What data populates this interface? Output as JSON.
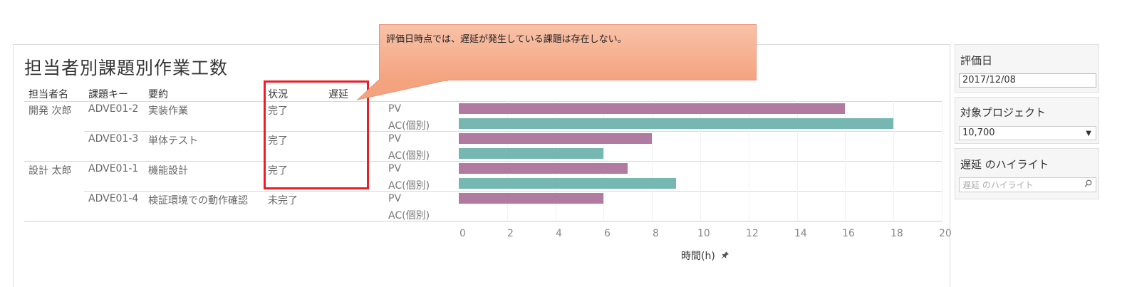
{
  "sheet": {
    "title": "担当者別課題別作業工数",
    "columns": {
      "assignee": "担当者名",
      "issue_key": "課題キー",
      "summary": "要約",
      "status": "状況",
      "delay": "遅延"
    },
    "menu_glyph": "="
  },
  "rows": [
    {
      "assignee": "開発  次郎",
      "issue_key": "ADVE01-2",
      "summary": "実装作業",
      "status": "完了",
      "pv_label": "PV",
      "ac_label": "AC(個別)",
      "pv": 16,
      "ac": 18
    },
    {
      "assignee": "",
      "issue_key": "ADVE01-3",
      "summary": "単体テスト",
      "status": "完了",
      "pv_label": "PV",
      "ac_label": "AC(個別)",
      "pv": 8,
      "ac": 6
    },
    {
      "assignee": "設計  太郎",
      "issue_key": "ADVE01-1",
      "summary": "機能設計",
      "status": "完了",
      "pv_label": "PV",
      "ac_label": "AC(個別)",
      "pv": 7,
      "ac": 9
    },
    {
      "assignee": "",
      "issue_key": "ADVE01-4",
      "summary": "検証環境での動作確認",
      "status": "未完了",
      "pv_label": "PV",
      "ac_label": "AC(個別)",
      "pv": 6,
      "ac": 0
    }
  ],
  "axis": {
    "title": "時間(h)",
    "pin_icon": "pin-icon",
    "ticks": [
      "0",
      "2",
      "4",
      "6",
      "8",
      "10",
      "12",
      "14",
      "16",
      "18",
      "20"
    ],
    "range": [
      0,
      20
    ]
  },
  "chart_data": {
    "type": "bar",
    "orientation": "horizontal",
    "categories": [
      "ADVE01-2",
      "ADVE01-3",
      "ADVE01-1",
      "ADVE01-4"
    ],
    "series": [
      {
        "name": "PV",
        "values": [
          16,
          8,
          7,
          6
        ]
      },
      {
        "name": "AC(個別)",
        "values": [
          18,
          6,
          9,
          0
        ]
      }
    ],
    "xlabel": "時間(h)",
    "xlim": [
      0,
      20
    ],
    "grid": true
  },
  "callout": {
    "text": "評価日時点では、遅延が発生している課題は存在しない。"
  },
  "filters": {
    "eval_date": {
      "title": "評価日",
      "value": "2017/12/08"
    },
    "project": {
      "title": "対象プロジェクト",
      "value": "10,700",
      "arrow": "▼"
    },
    "delay_highlight": {
      "title": "遅延 のハイライト",
      "placeholder": "遅延 のハイライト",
      "search_icon": "search-icon"
    }
  },
  "colors": {
    "pv": "#b07aa1",
    "ac": "#76b7b2",
    "highlight_border": "#ee1c25",
    "callout_fill": "#f4a37f"
  }
}
